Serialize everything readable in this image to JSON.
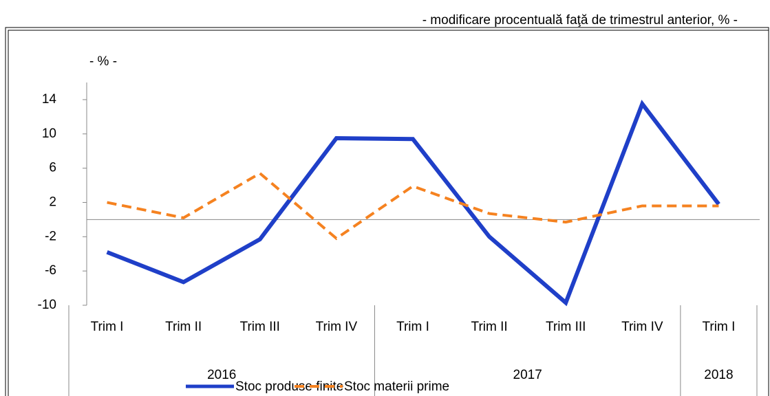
{
  "chart_data": {
    "type": "line",
    "subtitle": "- modificare procentuală faţă de trimestrul anterior, %  -",
    "y_label": "- % -",
    "categories": [
      "Trim I",
      "Trim II",
      "Trim III",
      "Trim IV",
      "Trim I",
      "Trim II",
      "Trim III",
      "Trim IV",
      "Trim I"
    ],
    "groups": [
      {
        "label": "2016",
        "span": 4
      },
      {
        "label": "2017",
        "span": 4
      },
      {
        "label": "2018",
        "span": 1
      }
    ],
    "series": [
      {
        "name": "Stoc produse finite",
        "color": "#1f3fc8",
        "dash": false,
        "values": [
          -3.8,
          -7.3,
          -2.3,
          9.5,
          9.4,
          -2.0,
          -9.7,
          13.5,
          1.8
        ]
      },
      {
        "name": "Stoc materii prime",
        "color": "#f58220",
        "dash": true,
        "values": [
          2.0,
          0.2,
          5.4,
          -2.2,
          3.9,
          0.7,
          -0.3,
          1.6,
          1.6
        ]
      }
    ],
    "ylim": [
      -10,
      16
    ],
    "yticks": [
      -10,
      -6,
      -2,
      2,
      6,
      10,
      14
    ]
  }
}
